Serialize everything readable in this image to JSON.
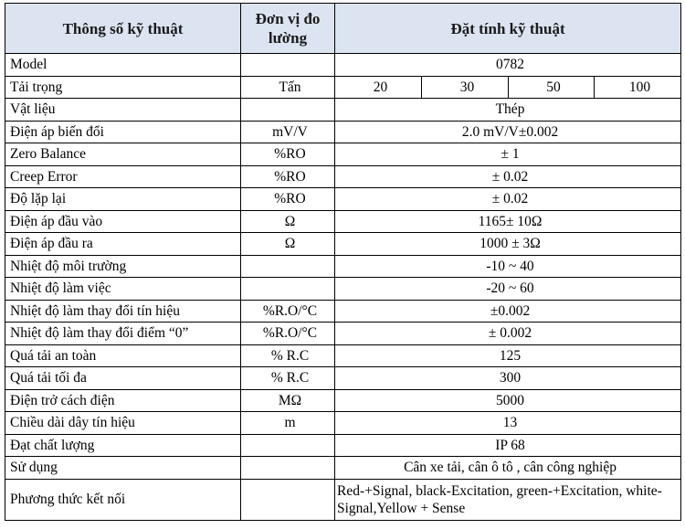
{
  "header": {
    "col1": "Thông số kỹ thuật",
    "col2": "Đơn vị đo lường",
    "col3": "Đặt tính kỹ thuật"
  },
  "rows": [
    {
      "name": "Model",
      "unit": "",
      "value": "0782"
    },
    {
      "name": "Tải trọng",
      "unit": "Tấn",
      "values": [
        "20",
        "30",
        "50",
        "100"
      ]
    },
    {
      "name": "Vật liệu",
      "unit": "",
      "value": "Thép"
    },
    {
      "name": "Điện áp biến đổi",
      "unit": "mV/V",
      "value": "2.0 mV/V±0.002"
    },
    {
      "name": "Zero Balance",
      "unit": "%RO",
      "value": "± 1"
    },
    {
      "name": "Creep Error",
      "unit": "%RO",
      "value": "± 0.02"
    },
    {
      "name": "Độ lặp lại",
      "unit": "%RO",
      "value": "± 0.02"
    },
    {
      "name": "Điện áp đầu vào",
      "unit": "Ω",
      "value": "1165± 10Ω"
    },
    {
      "name": "Điện áp đầu ra",
      "unit": "Ω",
      "value": "1000 ± 3Ω"
    },
    {
      "name": "Nhiệt độ môi trường",
      "unit": "",
      "value": "-10 ~ 40"
    },
    {
      "name": "Nhiệt độ làm việc",
      "unit": "",
      "value": "-20 ~ 60"
    },
    {
      "name": "Nhiệt độ làm thay đổi tín hiệu",
      "unit": "%R.O/°C",
      "value": "±0.002"
    },
    {
      "name": "Nhiệt độ làm thay đổi điểm “0”",
      "unit": "%R.O/°C",
      "value": "± 0.002"
    },
    {
      "name": "Quá tải an toàn",
      "unit": "% R.C",
      "value": "125"
    },
    {
      "name": "Quá tải tối đa",
      "unit": "% R.C",
      "value": "300"
    },
    {
      "name": "Điện trở cách điện",
      "unit": "MΩ",
      "value": "5000"
    },
    {
      "name": "Chiều dài dây tín hiệu",
      "unit": "m",
      "value": "13"
    },
    {
      "name": "Đạt chất lượng",
      "unit": "",
      "value": "IP 68"
    },
    {
      "name": "Sử dụng",
      "unit": "",
      "value": "Cân xe tải, cân ô tô ,  cân công nghiệp"
    },
    {
      "name": "Phương thức kết nối",
      "unit": "",
      "value": "Red-+Signal, black-Excitation, green-+Excitation, white-Signal,Yellow + Sense"
    }
  ]
}
